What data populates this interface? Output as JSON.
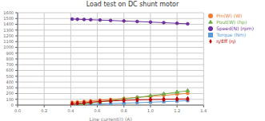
{
  "chart_data": {
    "type": "line",
    "title": "Load test on DC shunt motor",
    "x_label": "Line current(I) (A)",
    "x": [
      0.41,
      0.45,
      0.5,
      0.55,
      0.62,
      0.7,
      0.8,
      0.9,
      1.0,
      1.1,
      1.2,
      1.28
    ],
    "series": [
      {
        "name": "Torque (Nm)",
        "color": "#5b9bd5",
        "marker": "square",
        "values": [
          5,
          8,
          11,
          15,
          20,
          26,
          33,
          41,
          50,
          59,
          69,
          77
        ]
      },
      {
        "name": "Pin(W) (W)",
        "color": "#ed7d31",
        "marker": "circle",
        "values": [
          48,
          55,
          63,
          72,
          85,
          98,
          115,
          133,
          150,
          168,
          188,
          203
        ]
      },
      {
        "name": "Pout(W) (hp)",
        "color": "#70ad47",
        "marker": "triangle",
        "values": [
          10,
          18,
          28,
          40,
          58,
          78,
          105,
          132,
          162,
          192,
          224,
          248
        ]
      },
      {
        "name": "η/Eff (η)",
        "color": "#c00000",
        "marker": "diamond",
        "values": [
          20,
          28,
          38,
          50,
          62,
          72,
          82,
          90,
          96,
          100,
          104,
          106
        ]
      },
      {
        "name": "Speed(N) (rpm)",
        "color": "#7030a0",
        "marker": "circle",
        "values": [
          1490,
          1487,
          1483,
          1479,
          1473,
          1466,
          1457,
          1448,
          1438,
          1428,
          1417,
          1408
        ]
      }
    ],
    "xlim": [
      0,
      1.4
    ],
    "xticks": [
      {
        "value": 0,
        "label": "0.0"
      },
      0.2,
      0.4,
      0.6,
      0.8,
      {
        "value": 1,
        "label": "1.0"
      },
      1.2,
      1.4
    ],
    "ylim": [
      0,
      1600
    ],
    "yticks": [
      0,
      100,
      200,
      300,
      400,
      500,
      600,
      700,
      800,
      900,
      1000,
      1100,
      1200,
      1300,
      1400,
      1500,
      1600
    ],
    "grid": true,
    "legend": "right"
  }
}
